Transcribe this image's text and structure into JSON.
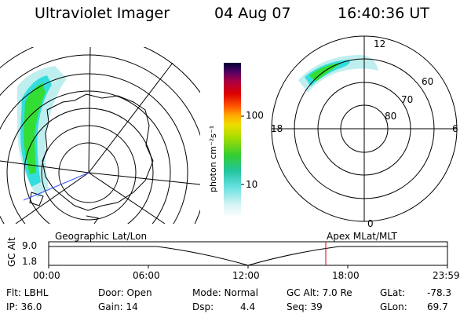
{
  "header": {
    "title": "Ultraviolet Imager",
    "date": "04 Aug 07",
    "time": "16:40:36 UT"
  },
  "colorbar": {
    "label": "photon cm⁻²s⁻¹",
    "ticks": [
      "100",
      "10"
    ]
  },
  "polar_plot": {
    "clock_labels": {
      "top": "12",
      "left": "18",
      "right": "6",
      "bottom": "0"
    },
    "lat_labels": [
      "60",
      "70",
      "80"
    ]
  },
  "timeline": {
    "left_title": "Geographic Lat/Lon",
    "right_title": "Apex MLat/MLT",
    "axis_label": "GC Alt",
    "y_top": "9.0",
    "y_bottom": "1.8",
    "x_ticks": [
      "00:00",
      "06:00",
      "12:00",
      "18:00",
      "23:59"
    ],
    "marker_time": "16:40"
  },
  "info": {
    "row1": [
      {
        "key": "flt",
        "text": "Flt: LBHL"
      },
      {
        "key": "door",
        "text": "Door: Open"
      },
      {
        "key": "mode",
        "text": "Mode: Normal"
      },
      {
        "key": "gcalt",
        "text": "GC Alt: 7.0 Re"
      },
      {
        "key": "glat_label",
        "text": "GLat:"
      },
      {
        "key": "glat_value",
        "text": "-78.3"
      }
    ],
    "row2": [
      {
        "key": "ip",
        "text": "IP: 36.0"
      },
      {
        "key": "gain",
        "text": "Gain: 14"
      },
      {
        "key": "dsp_label",
        "text": "Dsp:"
      },
      {
        "key": "dsp_value",
        "text": "4.4"
      },
      {
        "key": "seq",
        "text": "Seq: 39"
      },
      {
        "key": "glon_label",
        "text": "GLon:"
      },
      {
        "key": "glon_value",
        "text": "69.7"
      }
    ]
  },
  "colors": {
    "marker": "#dd0000",
    "aurora_green": "#33dd33",
    "aurora_cyan": "#33dddd",
    "aurora_light": "#bfeeee"
  }
}
